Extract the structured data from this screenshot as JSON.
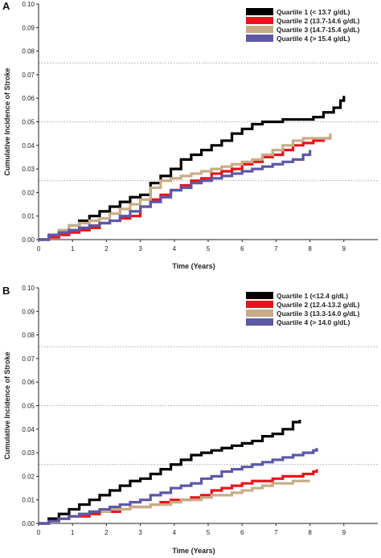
{
  "chart_data": [
    {
      "panel": "A",
      "type": "line",
      "xlabel": "Time (Years)",
      "ylabel": "Cumulative Incidence of Stroke",
      "xlim": [
        0,
        10
      ],
      "ylim": [
        0,
        0.1
      ],
      "xticks": [
        "0",
        "1",
        "2",
        "3",
        "4",
        "5",
        "6",
        "7",
        "8",
        "9"
      ],
      "yticks": [
        "0.00",
        "0.01",
        "0.02",
        "0.03",
        "0.04",
        "0.05",
        "0.06",
        "0.07",
        "0.08",
        "0.09",
        "0.10"
      ],
      "reference_lines_y": [
        0.025,
        0.05,
        0.075
      ],
      "legend_position": "top-right",
      "series": [
        {
          "name": "Quartile 1 (< 13.7 g/dL)",
          "color": "#000000",
          "x": [
            0,
            0.3,
            0.6,
            0.9,
            1.2,
            1.5,
            1.8,
            2.1,
            2.4,
            2.7,
            3.0,
            3.3,
            3.6,
            3.9,
            4.2,
            4.5,
            4.8,
            5.1,
            5.4,
            5.7,
            6.0,
            6.3,
            6.6,
            6.9,
            7.2,
            7.5,
            7.8,
            8.1,
            8.4,
            8.7,
            8.9,
            9.0
          ],
          "y": [
            0,
            0.001,
            0.003,
            0.006,
            0.008,
            0.01,
            0.012,
            0.014,
            0.016,
            0.018,
            0.019,
            0.024,
            0.027,
            0.03,
            0.034,
            0.036,
            0.038,
            0.04,
            0.042,
            0.045,
            0.047,
            0.049,
            0.05,
            0.05,
            0.051,
            0.051,
            0.051,
            0.052,
            0.054,
            0.056,
            0.059,
            0.061
          ]
        },
        {
          "name": "Quartile 2 (13.7-14.6 g/dL)",
          "color": "#e8141b",
          "x": [
            0,
            0.3,
            0.6,
            0.9,
            1.2,
            1.5,
            1.8,
            2.1,
            2.4,
            2.7,
            3.0,
            3.3,
            3.6,
            3.9,
            4.2,
            4.5,
            4.8,
            5.1,
            5.4,
            5.7,
            6.0,
            6.3,
            6.6,
            6.9,
            7.2,
            7.5,
            7.8,
            8.1,
            8.4,
            8.6
          ],
          "y": [
            0,
            0.001,
            0.002,
            0.003,
            0.004,
            0.005,
            0.007,
            0.008,
            0.009,
            0.01,
            0.014,
            0.017,
            0.019,
            0.021,
            0.023,
            0.025,
            0.026,
            0.028,
            0.029,
            0.03,
            0.032,
            0.033,
            0.035,
            0.036,
            0.038,
            0.04,
            0.041,
            0.042,
            0.043,
            0.044
          ]
        },
        {
          "name": "Quartile 3 (14.7-15.4 g/dL)",
          "color": "#c9ac87",
          "x": [
            0,
            0.3,
            0.6,
            0.9,
            1.2,
            1.5,
            1.8,
            2.1,
            2.4,
            2.7,
            3.0,
            3.3,
            3.6,
            3.9,
            4.2,
            4.5,
            4.8,
            5.1,
            5.4,
            5.7,
            6.0,
            6.3,
            6.6,
            6.9,
            7.2,
            7.5,
            7.8,
            8.1,
            8.4,
            8.6
          ],
          "y": [
            0,
            0.002,
            0.004,
            0.006,
            0.007,
            0.008,
            0.009,
            0.011,
            0.013,
            0.015,
            0.017,
            0.022,
            0.025,
            0.026,
            0.027,
            0.028,
            0.029,
            0.03,
            0.031,
            0.032,
            0.033,
            0.034,
            0.036,
            0.038,
            0.04,
            0.042,
            0.043,
            0.043,
            0.043,
            0.045
          ]
        },
        {
          "name": "Quartile 4 (> 15.4 g/dL)",
          "color": "#5d57a6",
          "x": [
            0,
            0.3,
            0.6,
            0.9,
            1.2,
            1.5,
            1.8,
            2.1,
            2.4,
            2.7,
            3.0,
            3.3,
            3.6,
            3.9,
            4.2,
            4.5,
            4.8,
            5.1,
            5.4,
            5.7,
            6.0,
            6.3,
            6.6,
            6.9,
            7.2,
            7.5,
            7.8,
            8.0
          ],
          "y": [
            0,
            0.002,
            0.003,
            0.004,
            0.005,
            0.006,
            0.007,
            0.008,
            0.01,
            0.012,
            0.014,
            0.016,
            0.018,
            0.021,
            0.022,
            0.024,
            0.025,
            0.026,
            0.027,
            0.028,
            0.029,
            0.03,
            0.031,
            0.032,
            0.033,
            0.034,
            0.036,
            0.038
          ]
        }
      ]
    },
    {
      "panel": "B",
      "type": "line",
      "xlabel": "Time (Years)",
      "ylabel": "Cumulative Incidence of Stroke",
      "xlim": [
        0,
        10
      ],
      "ylim": [
        0,
        0.1
      ],
      "xticks": [
        "0",
        "1",
        "2",
        "3",
        "4",
        "5",
        "6",
        "7",
        "8",
        "9"
      ],
      "yticks": [
        "0.00",
        "0.01",
        "0.02",
        "0.03",
        "0.04",
        "0.05",
        "0.06",
        "0.07",
        "0.08",
        "0.09",
        "0.10"
      ],
      "reference_lines_y": [
        0.025,
        0.05,
        0.075
      ],
      "legend_position": "top-right",
      "series": [
        {
          "name": "Quartile 1 (<12.4 g/dL)",
          "color": "#000000",
          "x": [
            0,
            0.3,
            0.6,
            0.9,
            1.2,
            1.5,
            1.8,
            2.1,
            2.4,
            2.7,
            3.0,
            3.3,
            3.6,
            3.9,
            4.2,
            4.5,
            4.8,
            5.1,
            5.4,
            5.7,
            6.0,
            6.3,
            6.6,
            6.9,
            7.2,
            7.5,
            7.7
          ],
          "y": [
            0,
            0.002,
            0.004,
            0.006,
            0.008,
            0.01,
            0.012,
            0.014,
            0.016,
            0.018,
            0.019,
            0.021,
            0.023,
            0.025,
            0.027,
            0.029,
            0.03,
            0.031,
            0.032,
            0.033,
            0.034,
            0.035,
            0.037,
            0.038,
            0.04,
            0.043,
            0.044
          ]
        },
        {
          "name": "Quartile 2 (12.4-13.2 g/dL)",
          "color": "#e8141b",
          "x": [
            0,
            0.3,
            0.6,
            0.9,
            1.2,
            1.5,
            1.8,
            2.1,
            2.4,
            2.7,
            3.0,
            3.3,
            3.6,
            3.9,
            4.2,
            4.5,
            4.8,
            5.1,
            5.4,
            5.7,
            6.0,
            6.3,
            6.6,
            6.9,
            7.2,
            7.5,
            7.8,
            8.1,
            8.2
          ],
          "y": [
            0,
            0.001,
            0.002,
            0.003,
            0.003,
            0.004,
            0.005,
            0.005,
            0.006,
            0.007,
            0.007,
            0.008,
            0.009,
            0.01,
            0.01,
            0.011,
            0.012,
            0.014,
            0.015,
            0.016,
            0.017,
            0.018,
            0.018,
            0.019,
            0.02,
            0.02,
            0.021,
            0.022,
            0.023
          ]
        },
        {
          "name": "Quartile 3 (13.3-14.0 g/dL)",
          "color": "#c9ac87",
          "x": [
            0,
            0.3,
            0.6,
            0.9,
            1.2,
            1.5,
            1.8,
            2.1,
            2.4,
            2.7,
            3.0,
            3.3,
            3.6,
            3.9,
            4.2,
            4.5,
            4.8,
            5.1,
            5.4,
            5.7,
            6.0,
            6.3,
            6.6,
            6.9,
            7.2,
            7.5,
            7.8,
            8.0
          ],
          "y": [
            0,
            0.001,
            0.002,
            0.003,
            0.004,
            0.005,
            0.005,
            0.006,
            0.006,
            0.007,
            0.007,
            0.008,
            0.008,
            0.009,
            0.01,
            0.01,
            0.011,
            0.012,
            0.012,
            0.013,
            0.014,
            0.015,
            0.016,
            0.017,
            0.017,
            0.018,
            0.018,
            0.018
          ]
        },
        {
          "name": "Quartile 4 (> 14.0 g/dL)",
          "color": "#5d57a6",
          "x": [
            0,
            0.3,
            0.6,
            0.9,
            1.2,
            1.5,
            1.8,
            2.1,
            2.4,
            2.7,
            3.0,
            3.3,
            3.6,
            3.9,
            4.2,
            4.5,
            4.8,
            5.1,
            5.4,
            5.7,
            6.0,
            6.3,
            6.6,
            6.9,
            7.2,
            7.5,
            7.8,
            8.1,
            8.2
          ],
          "y": [
            0,
            0.001,
            0.002,
            0.003,
            0.004,
            0.005,
            0.006,
            0.007,
            0.008,
            0.009,
            0.01,
            0.012,
            0.013,
            0.015,
            0.016,
            0.017,
            0.019,
            0.02,
            0.022,
            0.023,
            0.024,
            0.025,
            0.026,
            0.027,
            0.028,
            0.029,
            0.03,
            0.031,
            0.032
          ]
        }
      ]
    }
  ]
}
